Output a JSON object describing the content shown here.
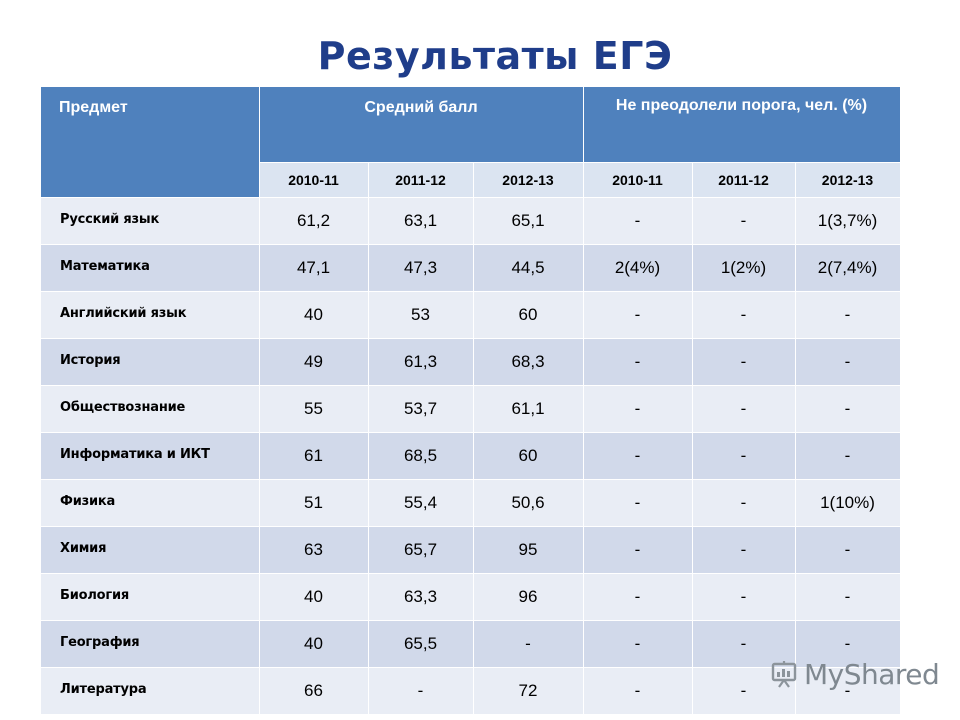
{
  "title": "Результаты ЕГЭ",
  "table": {
    "header": {
      "subject": "Предмет",
      "average": "Средний балл",
      "failed": "Не преодолели порога, чел. (%)"
    },
    "years": [
      "2010-11",
      "2011-12",
      "2012-13",
      "2010-11",
      "2011-12",
      "2012-13"
    ],
    "rows": [
      {
        "subject": "Русский язык",
        "cells": [
          "61,2",
          "63,1",
          "65,1",
          "-",
          "-",
          "1(3,7%)"
        ]
      },
      {
        "subject": "Математика",
        "cells": [
          "47,1",
          "47,3",
          "44,5",
          "2(4%)",
          "1(2%)",
          "2(7,4%)"
        ]
      },
      {
        "subject": "Английский язык",
        "cells": [
          "40",
          "53",
          "60",
          "-",
          "-",
          "-"
        ]
      },
      {
        "subject": "История",
        "cells": [
          "49",
          "61,3",
          "68,3",
          "-",
          "-",
          "-"
        ]
      },
      {
        "subject": "Обществознание",
        "cells": [
          "55",
          "53,7",
          "61,1",
          "-",
          "-",
          "-"
        ]
      },
      {
        "subject": "Информатика и ИКТ",
        "cells": [
          "61",
          "68,5",
          "60",
          "-",
          "-",
          "-"
        ]
      },
      {
        "subject": "Физика",
        "cells": [
          "51",
          "55,4",
          "50,6",
          "-",
          "-",
          "1(10%)"
        ]
      },
      {
        "subject": "Химия",
        "cells": [
          "63",
          "65,7",
          "95",
          "-",
          "-",
          "-"
        ]
      },
      {
        "subject": "Биология",
        "cells": [
          "40",
          "63,3",
          "96",
          "-",
          "-",
          "-"
        ]
      },
      {
        "subject": "География",
        "cells": [
          "40",
          "65,5",
          "-",
          "-",
          "-",
          "-"
        ]
      },
      {
        "subject": "Литература",
        "cells": [
          "66",
          "-",
          "72",
          "-",
          "-",
          "-"
        ]
      }
    ]
  },
  "watermark": {
    "brand": "MyShared",
    "icon": "presentation-icon"
  }
}
